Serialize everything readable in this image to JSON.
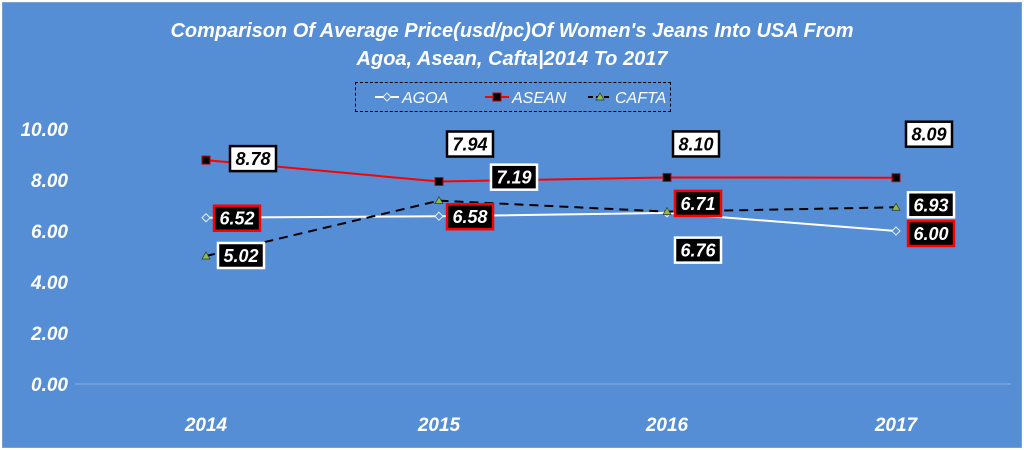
{
  "chart_data": {
    "type": "line",
    "title_line1": "Comparison Of Average Price(usd/pc)Of Women's Jeans  Into USA From",
    "title_line2": "Agoa, Asean, Cafta|2014 To 2017",
    "categories": [
      "2014",
      "2015",
      "2016",
      "2017"
    ],
    "ylim": [
      0,
      10
    ],
    "yticks": [
      "0.00",
      "2.00",
      "4.00",
      "6.00",
      "8.00",
      "10.00"
    ],
    "legend_position": "top",
    "series": [
      {
        "name": "AGOA",
        "values": [
          6.52,
          6.58,
          6.71,
          6.0
        ],
        "labels": [
          "6.52",
          "6.58",
          "6.71",
          "6.00"
        ],
        "color": "#ffffff",
        "marker": "diamond",
        "dash": false
      },
      {
        "name": "ASEAN",
        "values": [
          8.78,
          7.94,
          8.1,
          8.09
        ],
        "labels": [
          "8.78",
          "7.94",
          "8.10",
          "8.09"
        ],
        "color": "#ff0000",
        "marker": "square",
        "dash": false
      },
      {
        "name": "CAFTA",
        "values": [
          5.02,
          7.19,
          6.76,
          6.93
        ],
        "labels": [
          "5.02",
          "7.19",
          "6.76",
          "6.93"
        ],
        "color": "#000000",
        "marker": "triangle",
        "dash": true
      }
    ]
  }
}
